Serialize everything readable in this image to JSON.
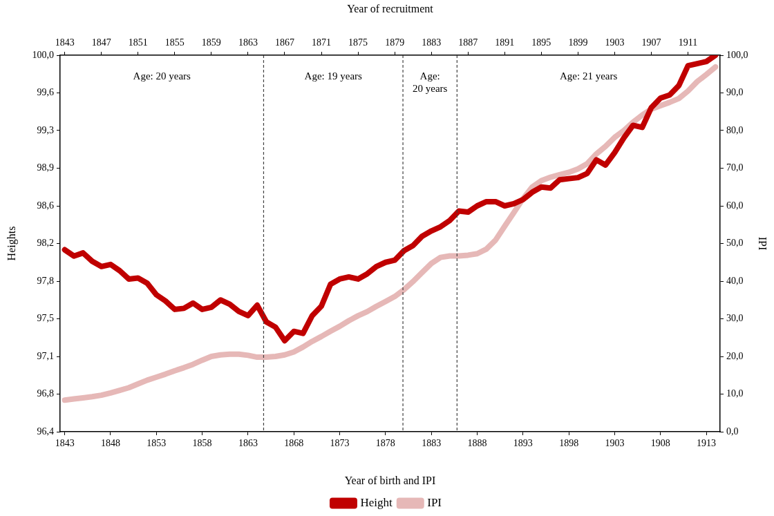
{
  "chart_data": {
    "type": "line",
    "xlabel": "Year of birth and IPI",
    "ylabel": "Heights",
    "y2label": "IPI",
    "x2label": "Year of recruitment",
    "x": [
      1843,
      1844,
      1845,
      1846,
      1847,
      1848,
      1849,
      1850,
      1851,
      1852,
      1853,
      1854,
      1855,
      1856,
      1857,
      1858,
      1859,
      1860,
      1861,
      1862,
      1863,
      1864,
      1865,
      1866,
      1867,
      1868,
      1869,
      1870,
      1871,
      1872,
      1873,
      1874,
      1875,
      1876,
      1877,
      1878,
      1879,
      1880,
      1881,
      1882,
      1883,
      1884,
      1885,
      1886,
      1887,
      1888,
      1889,
      1890,
      1891,
      1892,
      1893,
      1894,
      1895,
      1896,
      1897,
      1898,
      1899,
      1900,
      1901,
      1902,
      1903,
      1904,
      1905,
      1906,
      1907,
      1908,
      1909,
      1910,
      1911,
      1912,
      1913,
      1914
    ],
    "series": [
      {
        "name": "Height",
        "color": "#c00000",
        "values": [
          98.14,
          98.08,
          98.11,
          98.03,
          97.98,
          98.0,
          97.94,
          97.86,
          97.87,
          97.82,
          97.71,
          97.65,
          97.57,
          97.58,
          97.63,
          97.57,
          97.59,
          97.66,
          97.62,
          97.55,
          97.51,
          97.61,
          97.45,
          97.4,
          97.27,
          97.36,
          97.34,
          97.51,
          97.6,
          97.81,
          97.86,
          97.88,
          97.86,
          97.91,
          97.98,
          98.02,
          98.04,
          98.13,
          98.18,
          98.27,
          98.32,
          98.36,
          98.42,
          98.51,
          98.5,
          98.56,
          98.6,
          98.6,
          98.56,
          98.58,
          98.62,
          98.69,
          98.74,
          98.73,
          98.81,
          98.82,
          98.83,
          98.87,
          99.0,
          98.95,
          99.07,
          99.21,
          99.33,
          99.31,
          99.5,
          99.59,
          99.62,
          99.71,
          99.9,
          99.92,
          99.94,
          100.0
        ]
      },
      {
        "name": "IPI",
        "color": "#e6b8b7",
        "axis": "y2",
        "values": [
          8.4,
          8.7,
          9.0,
          9.3,
          9.7,
          10.3,
          11.0,
          11.7,
          12.7,
          13.7,
          14.5,
          15.3,
          16.2,
          17.0,
          17.9,
          19.0,
          20.0,
          20.4,
          20.6,
          20.6,
          20.3,
          19.8,
          19.8,
          20.0,
          20.4,
          21.2,
          22.5,
          24.0,
          25.3,
          26.7,
          28.0,
          29.5,
          30.8,
          31.9,
          33.3,
          34.6,
          35.9,
          37.7,
          39.9,
          42.3,
          44.7,
          46.3,
          46.7,
          46.7,
          46.9,
          47.3,
          48.5,
          50.9,
          54.6,
          58.2,
          61.9,
          65.0,
          66.7,
          67.6,
          68.3,
          68.9,
          69.8,
          71.2,
          73.8,
          75.8,
          78.2,
          80.0,
          82.2,
          84.1,
          85.7,
          86.6,
          87.5,
          88.5,
          90.5,
          93.0,
          94.9,
          96.9
        ]
      }
    ],
    "xlim": [
      1842.5,
      1914.5
    ],
    "xticks": [
      1843,
      1848,
      1853,
      1858,
      1863,
      1868,
      1873,
      1878,
      1883,
      1888,
      1893,
      1898,
      1903,
      1908,
      1913
    ],
    "x2lim": [
      1842.5,
      1914.5
    ],
    "x2ticks": [
      1843,
      1847,
      1851,
      1855,
      1859,
      1863,
      1867,
      1871,
      1875,
      1879,
      1883,
      1887,
      1891,
      1895,
      1899,
      1903,
      1907,
      1911
    ],
    "ylim": [
      96.4,
      100.0
    ],
    "yticks": [
      {
        "value": 96.4,
        "label": "96,4"
      },
      {
        "value": 96.76,
        "label": "96,8"
      },
      {
        "value": 97.12,
        "label": "97,1"
      },
      {
        "value": 97.48,
        "label": "97,5"
      },
      {
        "value": 97.84,
        "label": "97,8"
      },
      {
        "value": 98.2,
        "label": "98,2"
      },
      {
        "value": 98.56,
        "label": "98,6"
      },
      {
        "value": 98.92,
        "label": "98,9"
      },
      {
        "value": 99.28,
        "label": "99,3"
      },
      {
        "value": 99.64,
        "label": "99,6"
      },
      {
        "value": 100.0,
        "label": "100,0"
      }
    ],
    "y2lim": [
      0,
      100
    ],
    "y2ticks": [
      {
        "value": 0,
        "label": "0,0"
      },
      {
        "value": 10,
        "label": "10,0"
      },
      {
        "value": 20,
        "label": "20,0"
      },
      {
        "value": 30,
        "label": "30,0"
      },
      {
        "value": 40,
        "label": "40,0"
      },
      {
        "value": 50,
        "label": "50,0"
      },
      {
        "value": 60,
        "label": "60,0"
      },
      {
        "value": 70,
        "label": "70,0"
      },
      {
        "value": 80,
        "label": "80,0"
      },
      {
        "value": 90,
        "label": "90,0"
      },
      {
        "value": 100,
        "label": "100,0"
      }
    ],
    "ref_lines": [
      {
        "axis": "x",
        "value": 1864.7,
        "color": "#404040",
        "line_style": "dashed"
      },
      {
        "axis": "x",
        "value": 1879.9,
        "color": "#404040",
        "line_style": "dashed"
      },
      {
        "axis": "x",
        "value": 1885.8,
        "color": "#404040",
        "line_style": "dashed"
      }
    ],
    "annotations": [
      "Age: 20 years",
      "Age: 19 years",
      "Age:\n20 years",
      "Age: 21 years"
    ],
    "grid": false,
    "legend": "bottom",
    "marker": "none",
    "line_style": "solid"
  }
}
